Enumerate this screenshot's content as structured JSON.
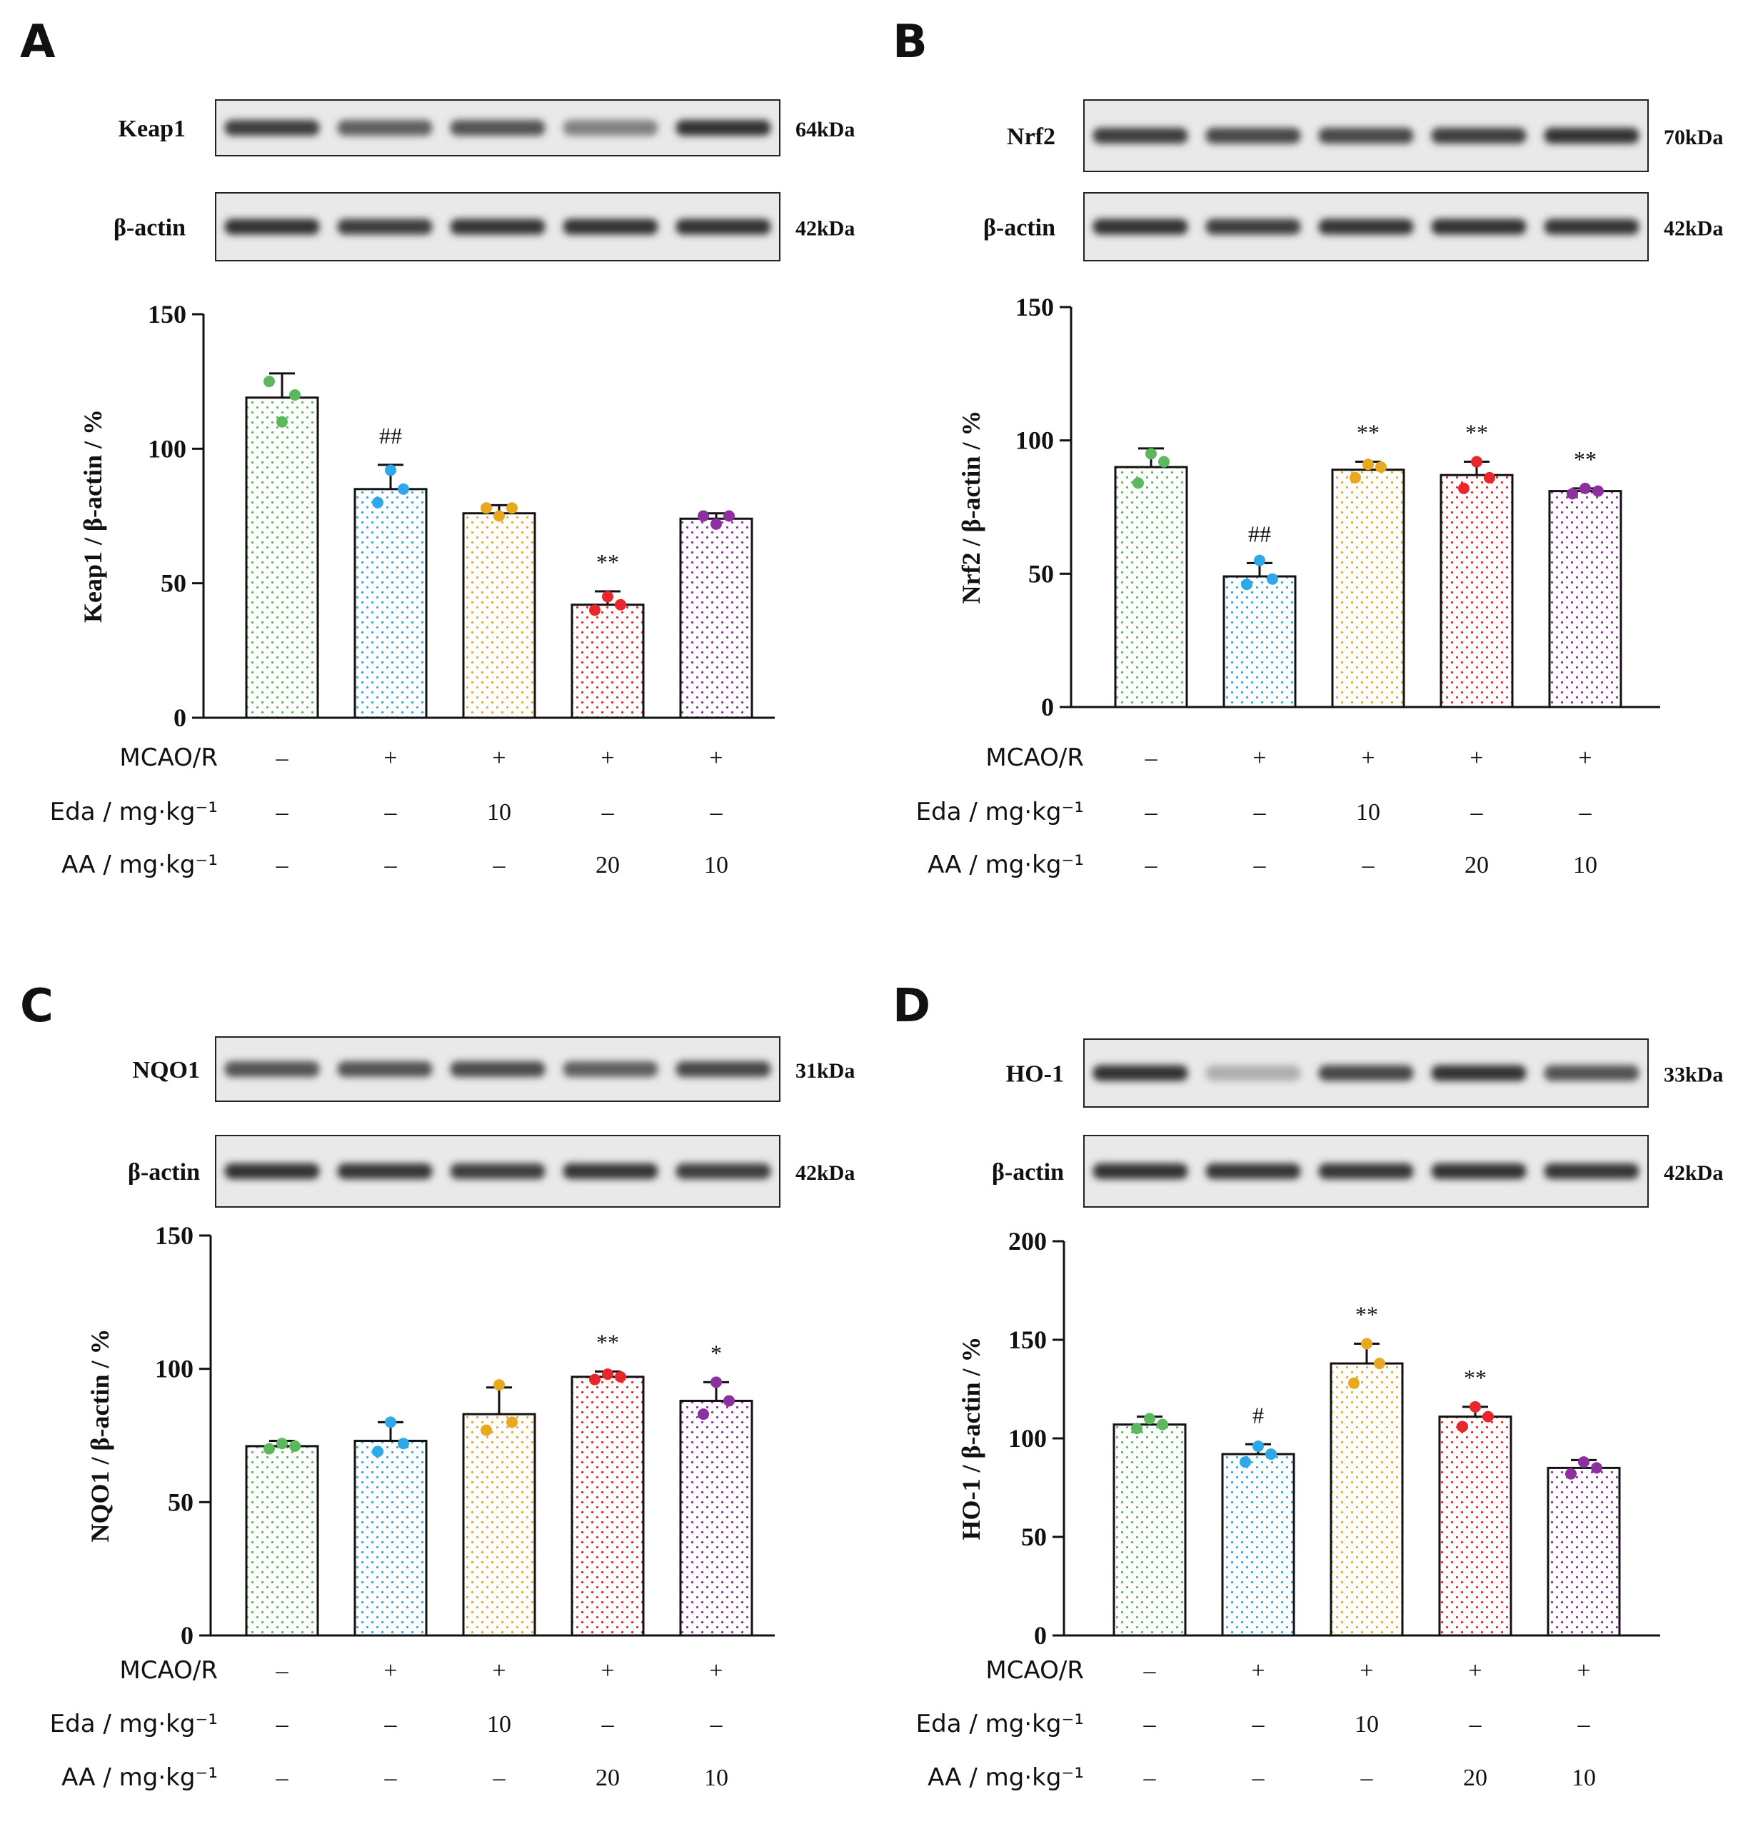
{
  "panels": [
    {
      "letter": "A",
      "blot": {
        "rows": [
          {
            "label": "Keap1",
            "kda": "64kDa",
            "intensity": [
              0.85,
              0.7,
              0.75,
              0.55,
              0.9
            ]
          },
          {
            "label": "β-actin",
            "kda": "42kDa",
            "intensity": [
              0.9,
              0.85,
              0.88,
              0.9,
              0.9
            ]
          }
        ]
      },
      "conditions": [
        {
          "label": "MCAO/R",
          "values": [
            "–",
            "+",
            "+",
            "+",
            "+"
          ]
        },
        {
          "label": "Eda / mg·kg⁻¹",
          "values": [
            "–",
            "–",
            "10",
            "–",
            "–"
          ]
        },
        {
          "label": "AA / mg·kg⁻¹",
          "values": [
            "–",
            "–",
            "–",
            "20",
            "10"
          ]
        }
      ],
      "chart_data": {
        "type": "bar",
        "ylabel": "Keap1 / β-actin / %",
        "ylim": [
          0,
          150
        ],
        "yticks": [
          0,
          50,
          100,
          150
        ],
        "values": [
          119,
          85,
          76,
          42,
          74
        ],
        "errors": [
          9,
          9,
          3,
          5,
          2
        ],
        "points": [
          [
            125,
            110,
            120
          ],
          [
            80,
            92,
            85
          ],
          [
            78,
            75,
            78
          ],
          [
            40,
            45,
            42
          ],
          [
            75,
            72,
            75
          ]
        ],
        "annotations": [
          "",
          "##",
          "",
          "**",
          ""
        ],
        "colors": [
          "#5cb85c",
          "#2ea8e8",
          "#e8a820",
          "#e8262c",
          "#8e2fa0"
        ]
      }
    },
    {
      "letter": "B",
      "blot": {
        "rows": [
          {
            "label": "Nrf2",
            "kda": "70kDa",
            "intensity": [
              0.85,
              0.8,
              0.8,
              0.85,
              0.9
            ]
          },
          {
            "label": "β-actin",
            "kda": "42kDa",
            "intensity": [
              0.9,
              0.85,
              0.88,
              0.9,
              0.88
            ]
          }
        ]
      },
      "conditions": [
        {
          "label": "MCAO/R",
          "values": [
            "–",
            "+",
            "+",
            "+",
            "+"
          ]
        },
        {
          "label": "Eda / mg·kg⁻¹",
          "values": [
            "–",
            "–",
            "10",
            "–",
            "–"
          ]
        },
        {
          "label": "AA / mg·kg⁻¹",
          "values": [
            "–",
            "–",
            "–",
            "20",
            "10"
          ]
        }
      ],
      "chart_data": {
        "type": "bar",
        "ylabel": "Nrf2 / β-actin / %",
        "ylim": [
          0,
          150
        ],
        "yticks": [
          0,
          50,
          100,
          150
        ],
        "values": [
          90,
          49,
          89,
          87,
          81
        ],
        "errors": [
          7,
          5,
          3,
          5,
          1
        ],
        "points": [
          [
            84,
            95,
            92
          ],
          [
            46,
            55,
            48
          ],
          [
            86,
            91,
            90
          ],
          [
            82,
            92,
            86
          ],
          [
            80,
            82,
            81
          ]
        ],
        "annotations": [
          "",
          "##",
          "**",
          "**",
          "**"
        ],
        "colors": [
          "#5cb85c",
          "#2ea8e8",
          "#e8a820",
          "#e8262c",
          "#8e2fa0"
        ]
      }
    },
    {
      "letter": "C",
      "blot": {
        "rows": [
          {
            "label": "NQO1",
            "kda": "31kDa",
            "intensity": [
              0.75,
              0.75,
              0.78,
              0.7,
              0.8
            ]
          },
          {
            "label": "β-actin",
            "kda": "42kDa",
            "intensity": [
              0.9,
              0.88,
              0.85,
              0.88,
              0.85
            ]
          }
        ]
      },
      "conditions": [
        {
          "label": "MCAO/R",
          "values": [
            "–",
            "+",
            "+",
            "+",
            "+"
          ]
        },
        {
          "label": "Eda / mg·kg⁻¹",
          "values": [
            "–",
            "–",
            "10",
            "–",
            "–"
          ]
        },
        {
          "label": "AA / mg·kg⁻¹",
          "values": [
            "–",
            "–",
            "–",
            "20",
            "10"
          ]
        }
      ],
      "chart_data": {
        "type": "bar",
        "ylabel": "NQO1 / β-actin / %",
        "ylim": [
          0,
          150
        ],
        "yticks": [
          0,
          50,
          100,
          150
        ],
        "values": [
          71,
          73,
          83,
          97,
          88
        ],
        "errors": [
          2,
          7,
          10,
          2,
          7
        ],
        "points": [
          [
            70,
            72,
            71
          ],
          [
            69,
            80,
            72
          ],
          [
            77,
            94,
            80
          ],
          [
            96,
            98,
            97
          ],
          [
            83,
            95,
            88
          ]
        ],
        "annotations": [
          "",
          "",
          "",
          "**",
          "*"
        ],
        "colors": [
          "#5cb85c",
          "#2ea8e8",
          "#e8a820",
          "#e8262c",
          "#8e2fa0"
        ]
      }
    },
    {
      "letter": "D",
      "blot": {
        "rows": [
          {
            "label": "HO-1",
            "kda": "33kDa",
            "intensity": [
              0.9,
              0.35,
              0.8,
              0.9,
              0.75
            ]
          },
          {
            "label": "β-actin",
            "kda": "42kDa",
            "intensity": [
              0.9,
              0.88,
              0.88,
              0.9,
              0.88
            ]
          }
        ]
      },
      "conditions": [
        {
          "label": "MCAO/R",
          "values": [
            "–",
            "+",
            "+",
            "+",
            "+"
          ]
        },
        {
          "label": "Eda / mg·kg⁻¹",
          "values": [
            "–",
            "–",
            "10",
            "–",
            "–"
          ]
        },
        {
          "label": "AA / mg·kg⁻¹",
          "values": [
            "–",
            "–",
            "–",
            "20",
            "10"
          ]
        }
      ],
      "chart_data": {
        "type": "bar",
        "ylabel": "HO-1 / β-actin / %",
        "ylim": [
          0,
          200
        ],
        "yticks": [
          0,
          50,
          100,
          150,
          200
        ],
        "values": [
          107,
          92,
          138,
          111,
          85
        ],
        "errors": [
          4,
          5,
          10,
          5,
          4
        ],
        "points": [
          [
            105,
            110,
            107
          ],
          [
            88,
            96,
            92
          ],
          [
            128,
            148,
            138
          ],
          [
            106,
            116,
            111
          ],
          [
            82,
            88,
            85
          ]
        ],
        "annotations": [
          "",
          "#",
          "**",
          "**",
          ""
        ],
        "colors": [
          "#5cb85c",
          "#2ea8e8",
          "#e8a820",
          "#e8262c",
          "#8e2fa0"
        ]
      }
    }
  ]
}
